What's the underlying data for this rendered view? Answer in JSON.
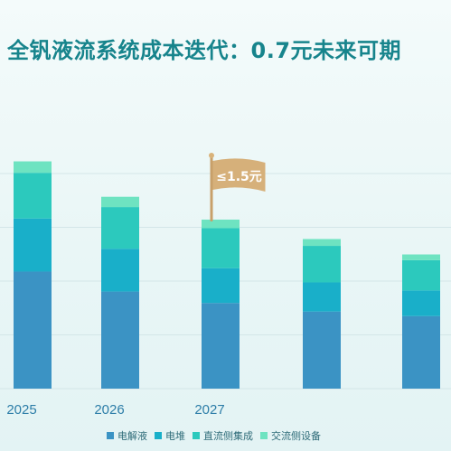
{
  "header": {
    "title": "全钒液流系统成本迭代：0.7元未来可期"
  },
  "chart_data": {
    "type": "bar",
    "stacked": true,
    "categories": [
      "2025",
      "2026",
      "2027",
      "",
      ""
    ],
    "series": [
      {
        "name": "电解液",
        "color": "#3b93c4",
        "values": [
          2.05,
          1.7,
          1.5,
          1.35,
          1.27
        ]
      },
      {
        "name": "电堆",
        "color": "#19afc9",
        "values": [
          0.93,
          0.75,
          0.61,
          0.51,
          0.45
        ]
      },
      {
        "name": "直流侧集成",
        "color": "#2cc9bd",
        "values": [
          0.8,
          0.73,
          0.7,
          0.64,
          0.53
        ]
      },
      {
        "name": "交流侧设备",
        "color": "#6ee3c1",
        "values": [
          0.2,
          0.18,
          0.15,
          0.12,
          0.1
        ]
      }
    ],
    "ylim": [
      0,
      4.4
    ],
    "grid": true,
    "legend_position": "bottom",
    "annotation": {
      "category": "2027",
      "label": "≤1.5元"
    }
  }
}
